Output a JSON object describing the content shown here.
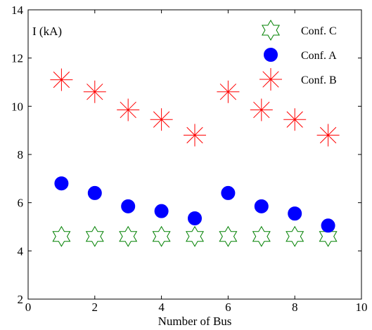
{
  "chart_data": {
    "type": "scatter",
    "xlabel": "Number of Bus",
    "ylabel": "",
    "annotation": "I (kA)",
    "xlim": [
      0,
      10
    ],
    "ylim": [
      2,
      14
    ],
    "xticks": [
      0,
      2,
      4,
      6,
      8,
      10
    ],
    "yticks": [
      2,
      4,
      6,
      8,
      10,
      12,
      14
    ],
    "grid": false,
    "legend_position": "top-right",
    "series": [
      {
        "name": "Conf. C",
        "marker": "hexagram",
        "color": "#008000",
        "points": [
          [
            1,
            4.6
          ],
          [
            2,
            4.6
          ],
          [
            3,
            4.6
          ],
          [
            4,
            4.6
          ],
          [
            5,
            4.6
          ],
          [
            6,
            4.6
          ],
          [
            7,
            4.6
          ],
          [
            8,
            4.6
          ],
          [
            9,
            4.6
          ]
        ]
      },
      {
        "name": "Conf. A",
        "marker": "circle",
        "color": "#0000ff",
        "points": [
          [
            1,
            6.8
          ],
          [
            2,
            6.4
          ],
          [
            3,
            5.85
          ],
          [
            4,
            5.65
          ],
          [
            5,
            5.35
          ],
          [
            6,
            6.4
          ],
          [
            7,
            5.85
          ],
          [
            8,
            5.55
          ],
          [
            9,
            5.05
          ]
        ]
      },
      {
        "name": "Conf. B",
        "marker": "asterisk",
        "color": "#ff0000",
        "points": [
          [
            1,
            11.1
          ],
          [
            2,
            10.6
          ],
          [
            3,
            9.85
          ],
          [
            4,
            9.45
          ],
          [
            5,
            8.8
          ],
          [
            6,
            10.6
          ],
          [
            7,
            9.85
          ],
          [
            8,
            9.45
          ],
          [
            9,
            8.8
          ]
        ]
      }
    ]
  }
}
